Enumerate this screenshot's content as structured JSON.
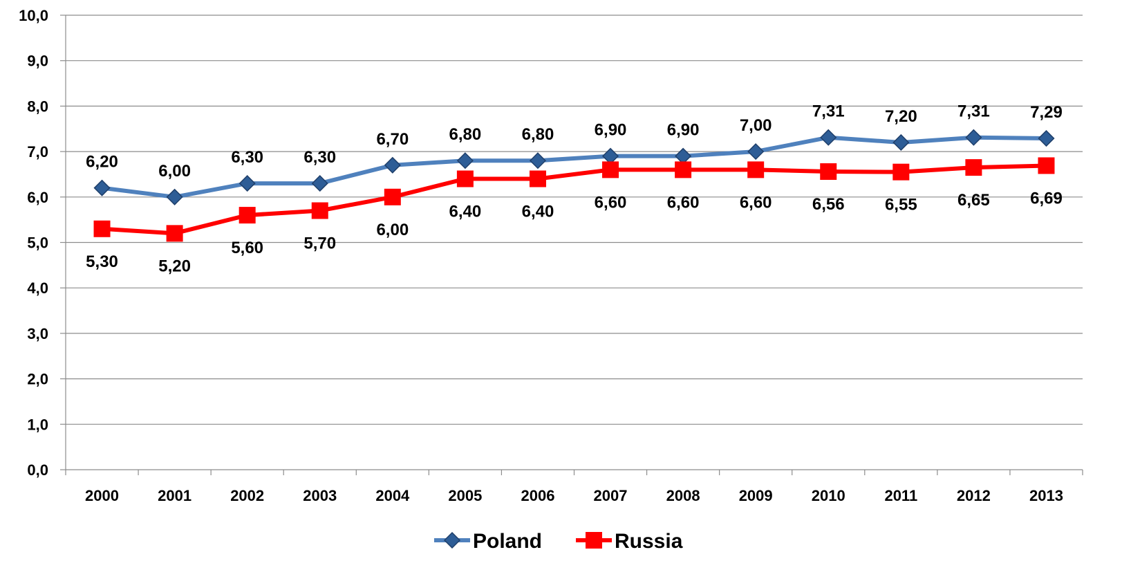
{
  "chart_data": {
    "type": "line",
    "title": "",
    "xlabel": "",
    "ylabel": "",
    "categories": [
      "2000",
      "2001",
      "2002",
      "2003",
      "2004",
      "2005",
      "2006",
      "2007",
      "2008",
      "2009",
      "2010",
      "2011",
      "2012",
      "2013"
    ],
    "ylim": [
      0,
      10
    ],
    "yticks": [
      "0,0",
      "1,0",
      "2,0",
      "3,0",
      "4,0",
      "5,0",
      "6,0",
      "7,0",
      "8,0",
      "9,0",
      "10,0"
    ],
    "grid": true,
    "legend": "bottom",
    "series": [
      {
        "name": "Poland",
        "color": "#4F81BD",
        "marker": "diamond",
        "values": [
          6.2,
          6.0,
          6.3,
          6.3,
          6.7,
          6.8,
          6.8,
          6.9,
          6.9,
          7.0,
          7.31,
          7.2,
          7.31,
          7.29
        ],
        "labels": [
          "6,20",
          "6,00",
          "6,30",
          "6,30",
          "6,70",
          "6,80",
          "6,80",
          "6,90",
          "6,90",
          "7,00",
          "7,31",
          "7,20",
          "7,31",
          "7,29"
        ],
        "label_position": "above"
      },
      {
        "name": "Russia",
        "color": "#FF0000",
        "marker": "square",
        "values": [
          5.3,
          5.2,
          5.6,
          5.7,
          6.0,
          6.4,
          6.4,
          6.6,
          6.6,
          6.6,
          6.56,
          6.55,
          6.65,
          6.69
        ],
        "labels": [
          "5,30",
          "5,20",
          "5,60",
          "5,70",
          "6,00",
          "6,40",
          "6,40",
          "6,60",
          "6,60",
          "6,60",
          "6,56",
          "6,55",
          "6,65",
          "6,69"
        ],
        "label_position": "below"
      }
    ]
  }
}
